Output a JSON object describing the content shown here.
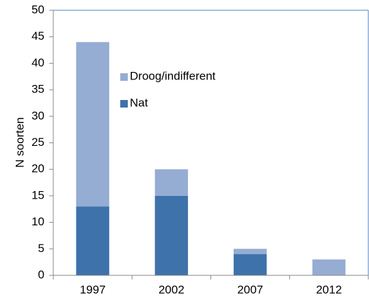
{
  "chart_data": {
    "type": "stacked_bar",
    "y_label": "N soorten",
    "categories": [
      "1997",
      "2002",
      "2007",
      "2012"
    ],
    "series": [
      {
        "name": "Nat",
        "color": "#3e72aa",
        "values": [
          13,
          15,
          4,
          0
        ]
      },
      {
        "name": "Droog/indifferent",
        "color": "#95acd3",
        "values": [
          31,
          5,
          1,
          3
        ]
      }
    ],
    "ylim": [
      0,
      50
    ],
    "yticks": [
      0,
      5,
      10,
      15,
      20,
      25,
      30,
      35,
      40,
      45,
      50
    ],
    "grid": false,
    "legend": "inside-top-left"
  }
}
